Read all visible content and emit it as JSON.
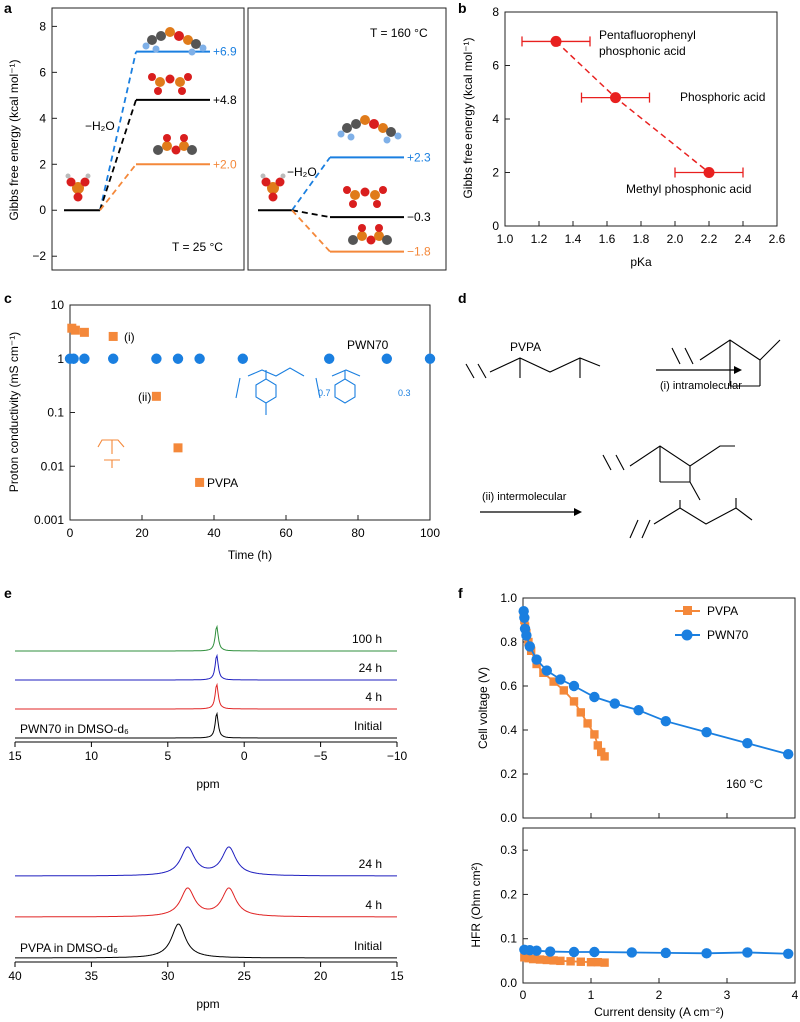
{
  "colors": {
    "blue": "#1a7fe0",
    "orange": "#f4883a",
    "red": "#e8201f",
    "black": "#000000",
    "green": "#2f8f3c",
    "navy": "#1f1fbf",
    "sred": "#e02424"
  },
  "panel_labels": [
    "a",
    "b",
    "c",
    "d",
    "e",
    "f"
  ],
  "chart_data": [
    {
      "id": "a",
      "type": "line",
      "ylabel": "Gibbs free energy (kcal mol⁻¹)",
      "yticks": [
        "8",
        "6",
        "4",
        "2",
        "0",
        "−2"
      ],
      "ylim": [
        -2.6,
        8.8
      ],
      "left_title": "T = 25 °C",
      "right_title": "T = 160 °C",
      "step_label": "−H₂O",
      "series": [
        {
          "panel": "25 °C",
          "label": "+6.9",
          "value": 6.9,
          "color": "blue"
        },
        {
          "panel": "25 °C",
          "label": "+4.8",
          "value": 4.8,
          "color": "black"
        },
        {
          "panel": "25 °C",
          "label": "+2.0",
          "value": 2.0,
          "color": "orange"
        },
        {
          "panel": "160 °C",
          "label": "+2.3",
          "value": 2.3,
          "color": "blue"
        },
        {
          "panel": "160 °C",
          "label": "−0.3",
          "value": -0.3,
          "color": "black"
        },
        {
          "panel": "160 °C",
          "label": "−1.8",
          "value": -1.8,
          "color": "orange"
        }
      ]
    },
    {
      "id": "b",
      "type": "scatter",
      "xlabel": "pKa",
      "ylabel": "Gibbs free energy (kcal mol⁻¹)",
      "xlim": [
        1.0,
        2.6
      ],
      "ylim": [
        0,
        8
      ],
      "xticks": [
        "1.0",
        "1.2",
        "1.4",
        "1.6",
        "1.8",
        "2.0",
        "2.2",
        "2.4",
        "2.6"
      ],
      "yticks": [
        "0",
        "2",
        "4",
        "6",
        "8"
      ],
      "points": [
        {
          "x": 1.3,
          "y": 6.9,
          "xerr": 0.2,
          "label": "Pentafluorophenyl phosphonic acid"
        },
        {
          "x": 1.65,
          "y": 4.8,
          "xerr": 0.2,
          "label": "Phosphoric acid"
        },
        {
          "x": 2.2,
          "y": 2.0,
          "xerr": 0.2,
          "label": "Methyl phosphonic acid"
        }
      ]
    },
    {
      "id": "c",
      "type": "scatter",
      "xlabel": "Time (h)",
      "ylabel": "Proton conductivity (mS cm⁻¹)",
      "xlim": [
        0,
        100
      ],
      "ylim": [
        0.001,
        10
      ],
      "yscale": "log",
      "xticks": [
        "0",
        "20",
        "40",
        "60",
        "80",
        "100"
      ],
      "yticks": [
        "10",
        "1",
        "0.1",
        "0.01",
        "0.001"
      ],
      "series": [
        {
          "name": "PWN70",
          "color": "blue",
          "x": [
            0,
            1,
            4,
            12,
            24,
            30,
            36,
            48,
            72,
            88,
            100
          ],
          "y": [
            1,
            1,
            1,
            1,
            1,
            1,
            1,
            1,
            1,
            1,
            1
          ]
        },
        {
          "name": "PVPA",
          "color": "orange",
          "x": [
            0.5,
            1.5,
            4,
            12,
            24,
            30,
            36
          ],
          "y": [
            3.7,
            3.4,
            3.1,
            2.6,
            0.2,
            0.022,
            0.005
          ]
        }
      ],
      "annotations": [
        "(i)",
        "(ii)"
      ],
      "struct_subscripts": [
        "0.7",
        "0.3"
      ]
    },
    {
      "id": "e1",
      "type": "line",
      "xlabel": "ppm",
      "xlim": [
        15,
        -10
      ],
      "xticks": [
        "15",
        "10",
        "5",
        "0",
        "−5",
        "−10"
      ],
      "sample": "PWN70 in DMSO-d₆",
      "traces": [
        {
          "label": "100 h",
          "color": "green",
          "peaks": [
            1.8
          ]
        },
        {
          "label": "24 h",
          "color": "navy",
          "peaks": [
            1.8
          ]
        },
        {
          "label": "4 h",
          "color": "sred",
          "peaks": [
            1.8
          ]
        },
        {
          "label": "Initial",
          "color": "black",
          "peaks": [
            1.8
          ]
        }
      ]
    },
    {
      "id": "e2",
      "type": "line",
      "xlabel": "ppm",
      "xlim": [
        40,
        15
      ],
      "xticks": [
        "40",
        "35",
        "30",
        "25",
        "20",
        "15"
      ],
      "sample": "PVPA in DMSO-d₆",
      "traces": [
        {
          "label": "24 h",
          "color": "navy",
          "peaks": [
            28.7,
            26.0
          ]
        },
        {
          "label": "4 h",
          "color": "sred",
          "peaks": [
            28.7,
            26.0
          ]
        },
        {
          "label": "Initial",
          "color": "black",
          "peaks": [
            29.3
          ]
        }
      ]
    },
    {
      "id": "f1",
      "type": "line",
      "ylabel": "Cell voltage (V)",
      "xlim": [
        0,
        4
      ],
      "ylim": [
        0,
        1.0
      ],
      "yticks": [
        "1.0",
        "0.8",
        "0.6",
        "0.4",
        "0.2",
        "0.0"
      ],
      "annotation": "160 °C",
      "series": [
        {
          "name": "PVPA",
          "color": "orange",
          "x": [
            0.01,
            0.02,
            0.03,
            0.05,
            0.08,
            0.12,
            0.2,
            0.3,
            0.45,
            0.6,
            0.75,
            0.85,
            0.95,
            1.05,
            1.1,
            1.15,
            1.2
          ],
          "y": [
            0.93,
            0.9,
            0.87,
            0.84,
            0.8,
            0.76,
            0.7,
            0.66,
            0.62,
            0.58,
            0.53,
            0.48,
            0.43,
            0.38,
            0.33,
            0.3,
            0.28
          ]
        },
        {
          "name": "PWN70",
          "color": "blue",
          "x": [
            0.01,
            0.02,
            0.03,
            0.05,
            0.1,
            0.2,
            0.35,
            0.55,
            0.75,
            1.05,
            1.35,
            1.7,
            2.1,
            2.7,
            3.3,
            3.9
          ],
          "y": [
            0.94,
            0.91,
            0.86,
            0.83,
            0.78,
            0.72,
            0.67,
            0.63,
            0.6,
            0.55,
            0.52,
            0.49,
            0.44,
            0.39,
            0.34,
            0.29
          ]
        }
      ]
    },
    {
      "id": "f2",
      "type": "line",
      "ylabel": "HFR (Ohm cm²)",
      "xlabel": "Current density (A cm⁻²)",
      "xlim": [
        0,
        4
      ],
      "ylim": [
        0,
        0.35
      ],
      "xticks": [
        "0",
        "1",
        "2",
        "3",
        "4"
      ],
      "yticks": [
        "0.3",
        "0.2",
        "0.1",
        "0.0"
      ],
      "series": [
        {
          "name": "PVPA",
          "color": "orange",
          "x": [
            0.02,
            0.08,
            0.15,
            0.25,
            0.35,
            0.45,
            0.55,
            0.7,
            0.85,
            1.0,
            1.1,
            1.2
          ],
          "y": [
            0.058,
            0.056,
            0.054,
            0.053,
            0.052,
            0.051,
            0.05,
            0.049,
            0.048,
            0.047,
            0.047,
            0.046
          ]
        },
        {
          "name": "PWN70",
          "color": "blue",
          "x": [
            0.02,
            0.1,
            0.2,
            0.4,
            0.75,
            1.05,
            1.6,
            2.1,
            2.7,
            3.3,
            3.9
          ],
          "y": [
            0.075,
            0.074,
            0.073,
            0.071,
            0.07,
            0.07,
            0.069,
            0.068,
            0.067,
            0.069,
            0.066
          ]
        }
      ]
    }
  ],
  "panel_d": {
    "title": "PVPA",
    "step1": "(i) intramolecular",
    "step2": "(ii) intermolecular"
  }
}
